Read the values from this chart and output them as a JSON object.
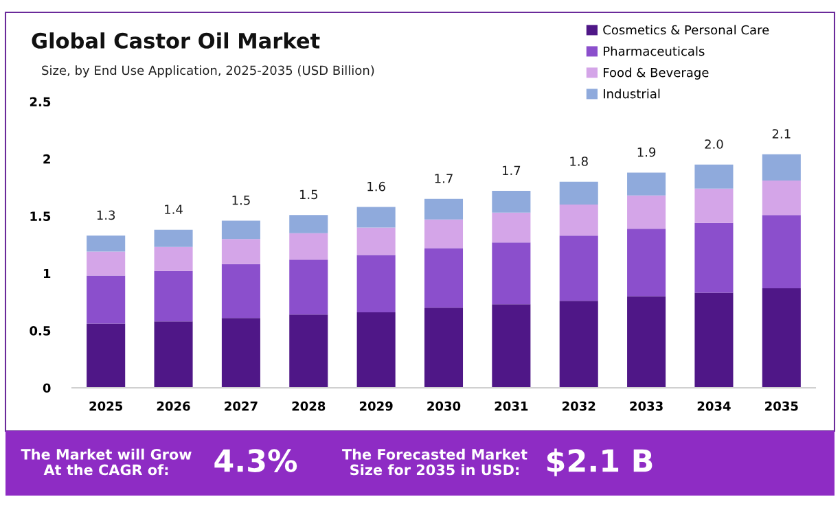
{
  "chart_data": {
    "type": "bar",
    "stacked": true,
    "title": "Global Castor Oil Market",
    "subtitle": "Size, by End Use Application, 2025-2035 (USD Billion)",
    "categories": [
      "2025",
      "2026",
      "2027",
      "2028",
      "2029",
      "2030",
      "2031",
      "2032",
      "2033",
      "2034",
      "2035"
    ],
    "series": [
      {
        "name": "Cosmetics & Personal Care",
        "color": "#4f1787",
        "values": [
          0.56,
          0.58,
          0.61,
          0.64,
          0.66,
          0.7,
          0.73,
          0.76,
          0.8,
          0.83,
          0.87
        ]
      },
      {
        "name": "Pharmaceuticals",
        "color": "#8b4fcc",
        "values": [
          0.42,
          0.44,
          0.47,
          0.48,
          0.5,
          0.52,
          0.54,
          0.57,
          0.59,
          0.61,
          0.64
        ]
      },
      {
        "name": "Food & Beverage",
        "color": "#d4a5e8",
        "values": [
          0.21,
          0.21,
          0.22,
          0.23,
          0.24,
          0.25,
          0.26,
          0.27,
          0.29,
          0.3,
          0.3
        ]
      },
      {
        "name": "Industrial",
        "color": "#8faadc",
        "values": [
          0.14,
          0.15,
          0.16,
          0.16,
          0.18,
          0.18,
          0.19,
          0.2,
          0.2,
          0.21,
          0.23
        ]
      }
    ],
    "totals": [
      "1.3",
      "1.4",
      "1.5",
      "1.5",
      "1.6",
      "1.7",
      "1.7",
      "1.8",
      "1.9",
      "2.0",
      "2.1"
    ],
    "ylim": [
      0,
      2.5
    ],
    "yticks": [
      0,
      0.5,
      1,
      1.5,
      2,
      2.5
    ],
    "legend": "top right",
    "annotations": [
      "The Market will Grow\nAt the CAGR of:",
      "4.3%",
      "The Forecasted Market\nSize for 2035 in USD:",
      "$2.1 B"
    ]
  }
}
